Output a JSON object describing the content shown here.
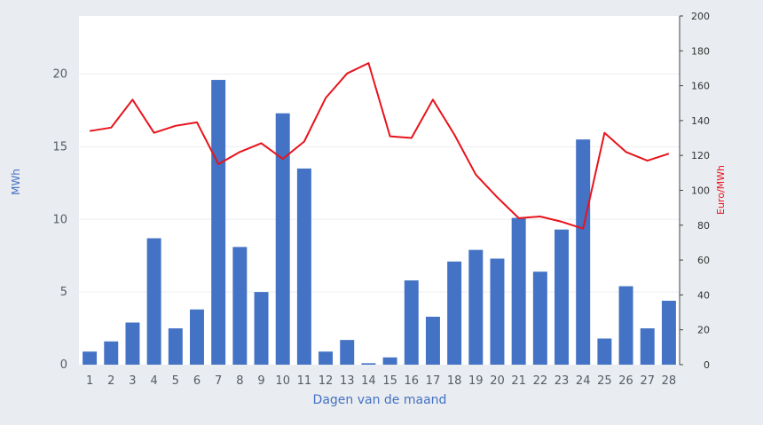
{
  "chart_data": {
    "type": "bar",
    "categories": [
      "1",
      "2",
      "3",
      "4",
      "5",
      "6",
      "7",
      "8",
      "9",
      "10",
      "11",
      "12",
      "13",
      "14",
      "15",
      "16",
      "17",
      "18",
      "19",
      "20",
      "21",
      "22",
      "23",
      "24",
      "25",
      "26",
      "27",
      "28"
    ],
    "series": [
      {
        "type": "bar",
        "axis": "left",
        "color": "#4472c4",
        "values": [
          0.9,
          1.6,
          2.9,
          8.7,
          2.5,
          3.8,
          19.6,
          8.1,
          5.0,
          17.3,
          13.5,
          0.9,
          1.7,
          0.1,
          0.5,
          5.8,
          3.3,
          7.1,
          7.9,
          7.3,
          10.1,
          6.4,
          9.3,
          15.5,
          1.8,
          5.4,
          2.5,
          4.4
        ]
      },
      {
        "type": "line",
        "axis": "right",
        "color": "#e8131b",
        "values": [
          134,
          136,
          152,
          133,
          137,
          139,
          115,
          122,
          127,
          118,
          128,
          153,
          167,
          173,
          131,
          130,
          152,
          132,
          109,
          96,
          84,
          85,
          82,
          78,
          133,
          122,
          117,
          121
        ]
      }
    ],
    "xlabel": "Dagen van de maand",
    "ylabel_left": "MWh",
    "ylabel_right": "Euro/MWh",
    "ylim_left": [
      0,
      24
    ],
    "yticks_left": [
      0,
      5,
      10,
      15,
      20
    ],
    "ylim_right": [
      0,
      200
    ],
    "yticks_right": [
      0,
      20,
      40,
      60,
      80,
      100,
      120,
      140,
      160,
      180,
      200
    ],
    "grid": true,
    "legend": "none"
  }
}
